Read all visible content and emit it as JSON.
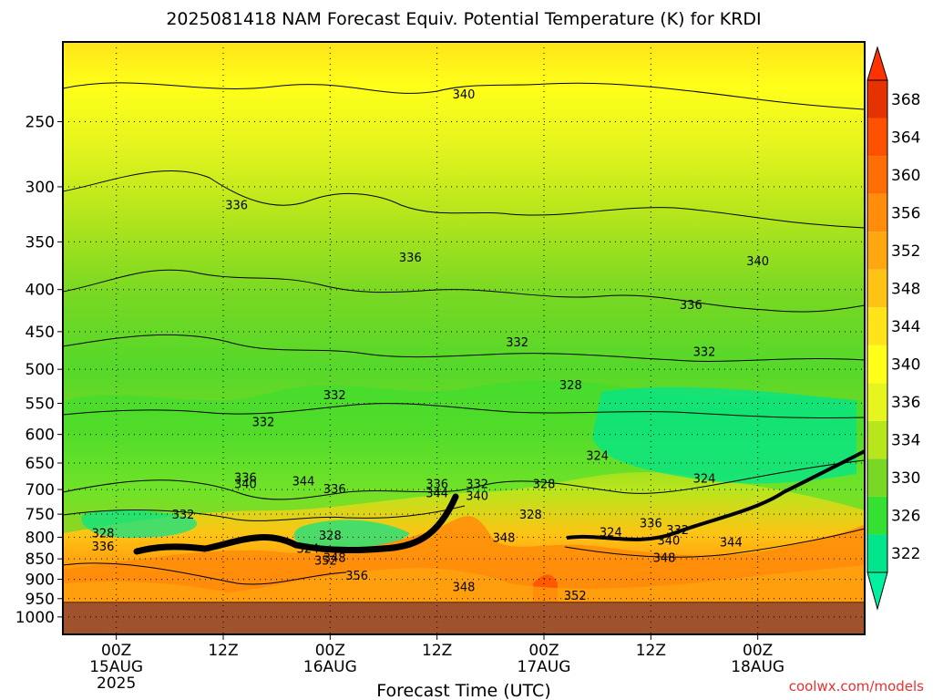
{
  "chart_data": {
    "type": "heatmap",
    "title": "2025081418 NAM Forecast Equiv. Potential Temperature (K) for KRDI",
    "xlabel": "Forecast Time (UTC)",
    "ylabel": "",
    "y_scale": "log",
    "y_reversed": true,
    "ylim": [
      200,
      1050
    ],
    "y_ticks": [
      250,
      300,
      350,
      400,
      450,
      500,
      550,
      600,
      650,
      700,
      750,
      800,
      850,
      900,
      950,
      1000
    ],
    "xlim": [
      "2025-08-14T18:00Z",
      "2025-08-18T12:00Z"
    ],
    "x_ticks": [
      {
        "time": "2025-08-15T00:00Z",
        "lines": [
          "00Z",
          "15AUG",
          "2025"
        ]
      },
      {
        "time": "2025-08-15T12:00Z",
        "lines": [
          "12Z"
        ]
      },
      {
        "time": "2025-08-16T00:00Z",
        "lines": [
          "00Z",
          "16AUG"
        ]
      },
      {
        "time": "2025-08-16T12:00Z",
        "lines": [
          "12Z"
        ]
      },
      {
        "time": "2025-08-17T00:00Z",
        "lines": [
          "00Z",
          "17AUG"
        ]
      },
      {
        "time": "2025-08-17T12:00Z",
        "lines": [
          "12Z"
        ]
      },
      {
        "time": "2025-08-18T00:00Z",
        "lines": [
          "00Z",
          "18AUG"
        ]
      }
    ],
    "colorbar": {
      "levels": [
        322,
        326,
        330,
        334,
        336,
        340,
        344,
        348,
        352,
        356,
        360,
        364,
        368
      ],
      "colors": [
        "#00e58c",
        "#34e032",
        "#78d823",
        "#b8e61c",
        "#e6f51e",
        "#ffff1a",
        "#ffe419",
        "#ffc314",
        "#ffa70f",
        "#ff8c0a",
        "#ff6e05",
        "#ff5000",
        "#e63200"
      ]
    },
    "contour_labels": [
      {
        "text": "340",
        "time": "2025-08-16T15:00Z",
        "p": 232
      },
      {
        "text": "336",
        "time": "2025-08-15T13:30Z",
        "p": 316
      },
      {
        "text": "336",
        "time": "2025-08-16T09:00Z",
        "p": 366
      },
      {
        "text": "340",
        "time": "2025-08-18T00:00Z",
        "p": 370
      },
      {
        "text": "336",
        "time": "2025-08-17T16:30Z",
        "p": 418
      },
      {
        "text": "332",
        "time": "2025-08-16T21:00Z",
        "p": 464
      },
      {
        "text": "332",
        "time": "2025-08-17T18:00Z",
        "p": 477
      },
      {
        "text": "328",
        "time": "2025-08-17T03:00Z",
        "p": 523
      },
      {
        "text": "332",
        "time": "2025-08-16T00:30Z",
        "p": 538
      },
      {
        "text": "332",
        "time": "2025-08-15T16:30Z",
        "p": 580
      },
      {
        "text": "324",
        "time": "2025-08-17T06:00Z",
        "p": 638
      },
      {
        "text": "324",
        "time": "2025-08-17T18:00Z",
        "p": 680
      },
      {
        "text": "336",
        "time": "2025-08-15T14:30Z",
        "p": 678
      },
      {
        "text": "340",
        "time": "2025-08-15T14:30Z",
        "p": 690
      },
      {
        "text": "344",
        "time": "2025-08-15T21:00Z",
        "p": 685
      },
      {
        "text": "336",
        "time": "2025-08-16T00:30Z",
        "p": 700
      },
      {
        "text": "336",
        "time": "2025-08-16T12:00Z",
        "p": 690
      },
      {
        "text": "332",
        "time": "2025-08-16T16:30Z",
        "p": 690
      },
      {
        "text": "344",
        "time": "2025-08-16T12:00Z",
        "p": 708
      },
      {
        "text": "340",
        "time": "2025-08-16T16:30Z",
        "p": 713
      },
      {
        "text": "328",
        "time": "2025-08-17T00:00Z",
        "p": 690
      },
      {
        "text": "332",
        "time": "2025-08-15T07:30Z",
        "p": 752
      },
      {
        "text": "328",
        "time": "2025-08-16T00:00Z",
        "p": 797
      },
      {
        "text": "328",
        "time": "2025-08-16T22:30Z",
        "p": 752
      },
      {
        "text": "328",
        "time": "2025-08-14T22:30Z",
        "p": 792
      },
      {
        "text": "336",
        "time": "2025-08-14T22:30Z",
        "p": 822
      },
      {
        "text": "324",
        "time": "2025-08-15T21:30Z",
        "p": 827
      },
      {
        "text": "352",
        "time": "2025-08-15T23:30Z",
        "p": 855
      },
      {
        "text": "348",
        "time": "2025-08-16T00:30Z",
        "p": 849
      },
      {
        "text": "356",
        "time": "2025-08-16T03:00Z",
        "p": 892
      },
      {
        "text": "348",
        "time": "2025-08-16T19:30Z",
        "p": 802
      },
      {
        "text": "324",
        "time": "2025-08-17T07:30Z",
        "p": 790
      },
      {
        "text": "336",
        "time": "2025-08-17T12:00Z",
        "p": 770
      },
      {
        "text": "332",
        "time": "2025-08-17T15:00Z",
        "p": 785
      },
      {
        "text": "340",
        "time": "2025-08-17T14:00Z",
        "p": 808
      },
      {
        "text": "344",
        "time": "2025-08-17T21:00Z",
        "p": 813
      },
      {
        "text": "348",
        "time": "2025-08-17T13:30Z",
        "p": 849
      },
      {
        "text": "348",
        "time": "2025-08-16T15:00Z",
        "p": 921
      },
      {
        "text": "352",
        "time": "2025-08-17T03:30Z",
        "p": 943
      }
    ]
  },
  "credit": "coolwx.com/models"
}
